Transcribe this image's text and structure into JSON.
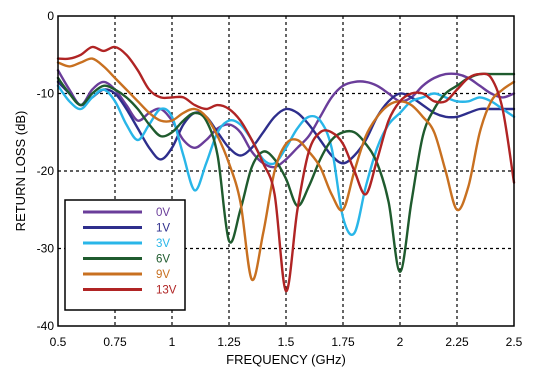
{
  "chart_data": {
    "type": "line",
    "title": "",
    "xlabel": "FREQUENCY (GHz)",
    "ylabel": "RETURN LOSS (dB)",
    "xlim": [
      0.5,
      2.5
    ],
    "ylim": [
      -40,
      0
    ],
    "x_ticks": [
      {
        "value": 0.5,
        "label": "0.5"
      },
      {
        "value": 0.75,
        "label": "0.75"
      },
      {
        "value": 1,
        "label": "1"
      },
      {
        "value": 1.25,
        "label": "1.25"
      },
      {
        "value": 1.5,
        "label": "1.5"
      },
      {
        "value": 1.75,
        "label": "1.75"
      },
      {
        "value": 2,
        "label": "2"
      },
      {
        "value": 2.25,
        "label": "2.25"
      },
      {
        "value": 2.5,
        "label": "2.5"
      }
    ],
    "y_ticks": [
      {
        "value": 0,
        "label": "0"
      },
      {
        "value": -10,
        "label": "-10"
      },
      {
        "value": -20,
        "label": "-20"
      },
      {
        "value": -30,
        "label": "-30"
      },
      {
        "value": -40,
        "label": "-40"
      }
    ],
    "grid": true,
    "legend_position": "bottom-left",
    "series": [
      {
        "name": "0V",
        "color": "#6a3d9a",
        "points": [
          [
            0.5,
            -7
          ],
          [
            0.55,
            -9.5
          ],
          [
            0.6,
            -11.5
          ],
          [
            0.65,
            -9.5
          ],
          [
            0.7,
            -8.5
          ],
          [
            0.75,
            -9.5
          ],
          [
            0.8,
            -11.5
          ],
          [
            0.85,
            -13.5
          ],
          [
            0.9,
            -12.5
          ],
          [
            0.95,
            -12
          ],
          [
            1.0,
            -13.5
          ],
          [
            1.05,
            -16
          ],
          [
            1.1,
            -17
          ],
          [
            1.15,
            -16
          ],
          [
            1.2,
            -14.5
          ],
          [
            1.25,
            -14
          ],
          [
            1.3,
            -15
          ],
          [
            1.35,
            -17.5
          ],
          [
            1.4,
            -19
          ],
          [
            1.45,
            -19.5
          ],
          [
            1.5,
            -18.5
          ],
          [
            1.55,
            -17
          ],
          [
            1.6,
            -15.5
          ],
          [
            1.65,
            -13
          ],
          [
            1.7,
            -10.5
          ],
          [
            1.75,
            -9
          ],
          [
            1.8,
            -8.5
          ],
          [
            1.85,
            -8.5
          ],
          [
            1.9,
            -9
          ],
          [
            1.95,
            -10
          ],
          [
            2.0,
            -11
          ],
          [
            2.05,
            -10.5
          ],
          [
            2.1,
            -9
          ],
          [
            2.15,
            -8
          ],
          [
            2.2,
            -7.5
          ],
          [
            2.25,
            -7.5
          ],
          [
            2.3,
            -8
          ],
          [
            2.35,
            -9
          ],
          [
            2.4,
            -10
          ],
          [
            2.45,
            -10.5
          ],
          [
            2.5,
            -10
          ]
        ]
      },
      {
        "name": "1V",
        "color": "#2e2e8c",
        "points": [
          [
            0.5,
            -8.5
          ],
          [
            0.55,
            -10
          ],
          [
            0.6,
            -11.5
          ],
          [
            0.65,
            -10.5
          ],
          [
            0.7,
            -9.5
          ],
          [
            0.75,
            -10
          ],
          [
            0.8,
            -12
          ],
          [
            0.85,
            -14.5
          ],
          [
            0.9,
            -17
          ],
          [
            0.95,
            -18.5
          ],
          [
            1.0,
            -17
          ],
          [
            1.05,
            -14
          ],
          [
            1.1,
            -12.5
          ],
          [
            1.15,
            -13
          ],
          [
            1.2,
            -15
          ],
          [
            1.25,
            -17
          ],
          [
            1.3,
            -18
          ],
          [
            1.35,
            -17
          ],
          [
            1.4,
            -15
          ],
          [
            1.45,
            -13
          ],
          [
            1.5,
            -12
          ],
          [
            1.55,
            -12.5
          ],
          [
            1.6,
            -14
          ],
          [
            1.65,
            -16
          ],
          [
            1.7,
            -18
          ],
          [
            1.75,
            -19
          ],
          [
            1.8,
            -18
          ],
          [
            1.85,
            -16
          ],
          [
            1.9,
            -13
          ],
          [
            1.95,
            -11
          ],
          [
            2.0,
            -10
          ],
          [
            2.05,
            -10.5
          ],
          [
            2.1,
            -11.5
          ],
          [
            2.15,
            -12.5
          ],
          [
            2.2,
            -13
          ],
          [
            2.25,
            -13
          ],
          [
            2.3,
            -12.5
          ],
          [
            2.35,
            -12
          ],
          [
            2.4,
            -12
          ],
          [
            2.45,
            -12
          ],
          [
            2.5,
            -12
          ]
        ]
      },
      {
        "name": "3V",
        "color": "#29b6e8",
        "points": [
          [
            0.5,
            -9
          ],
          [
            0.55,
            -11
          ],
          [
            0.6,
            -12
          ],
          [
            0.65,
            -10.5
          ],
          [
            0.7,
            -9.5
          ],
          [
            0.75,
            -11
          ],
          [
            0.8,
            -14
          ],
          [
            0.85,
            -16
          ],
          [
            0.9,
            -14
          ],
          [
            0.95,
            -12
          ],
          [
            1.0,
            -13
          ],
          [
            1.05,
            -18
          ],
          [
            1.1,
            -22.5
          ],
          [
            1.15,
            -19
          ],
          [
            1.2,
            -15
          ],
          [
            1.25,
            -13.5
          ],
          [
            1.3,
            -14
          ],
          [
            1.35,
            -16
          ],
          [
            1.4,
            -18.5
          ],
          [
            1.45,
            -19
          ],
          [
            1.5,
            -17
          ],
          [
            1.55,
            -14.5
          ],
          [
            1.6,
            -13
          ],
          [
            1.65,
            -13.5
          ],
          [
            1.7,
            -17
          ],
          [
            1.75,
            -26
          ],
          [
            1.8,
            -28
          ],
          [
            1.85,
            -22
          ],
          [
            1.9,
            -17
          ],
          [
            1.95,
            -14
          ],
          [
            2.0,
            -12.5
          ],
          [
            2.05,
            -11
          ],
          [
            2.1,
            -10.5
          ],
          [
            2.15,
            -10
          ],
          [
            2.2,
            -10.5
          ],
          [
            2.25,
            -11
          ],
          [
            2.3,
            -11
          ],
          [
            2.35,
            -10.5
          ],
          [
            2.4,
            -11
          ],
          [
            2.45,
            -12
          ],
          [
            2.5,
            -13
          ]
        ]
      },
      {
        "name": "6V",
        "color": "#1f5b2e",
        "points": [
          [
            0.5,
            -8
          ],
          [
            0.55,
            -10
          ],
          [
            0.6,
            -11.5
          ],
          [
            0.65,
            -10
          ],
          [
            0.7,
            -9
          ],
          [
            0.75,
            -9.5
          ],
          [
            0.8,
            -10.5
          ],
          [
            0.85,
            -12
          ],
          [
            0.9,
            -14
          ],
          [
            0.95,
            -15.5
          ],
          [
            1.0,
            -15
          ],
          [
            1.05,
            -13.5
          ],
          [
            1.1,
            -12.5
          ],
          [
            1.15,
            -13.5
          ],
          [
            1.2,
            -18
          ],
          [
            1.25,
            -29
          ],
          [
            1.3,
            -25
          ],
          [
            1.35,
            -19.5
          ],
          [
            1.4,
            -17.5
          ],
          [
            1.45,
            -18.5
          ],
          [
            1.5,
            -21
          ],
          [
            1.55,
            -24.5
          ],
          [
            1.6,
            -22
          ],
          [
            1.65,
            -18.5
          ],
          [
            1.7,
            -16
          ],
          [
            1.75,
            -15
          ],
          [
            1.8,
            -15
          ],
          [
            1.85,
            -16.5
          ],
          [
            1.9,
            -19
          ],
          [
            1.95,
            -24
          ],
          [
            2.0,
            -33
          ],
          [
            2.05,
            -24
          ],
          [
            2.1,
            -15.5
          ],
          [
            2.15,
            -12
          ],
          [
            2.2,
            -10
          ],
          [
            2.25,
            -9
          ],
          [
            2.3,
            -8
          ],
          [
            2.35,
            -7.5
          ],
          [
            2.4,
            -7.5
          ],
          [
            2.45,
            -7.5
          ],
          [
            2.5,
            -7.5
          ]
        ]
      },
      {
        "name": "9V",
        "color": "#c87020",
        "points": [
          [
            0.5,
            -6
          ],
          [
            0.55,
            -6.5
          ],
          [
            0.6,
            -6
          ],
          [
            0.65,
            -5.5
          ],
          [
            0.7,
            -6.5
          ],
          [
            0.75,
            -8
          ],
          [
            0.8,
            -9.5
          ],
          [
            0.85,
            -11
          ],
          [
            0.9,
            -12.5
          ],
          [
            0.95,
            -13.5
          ],
          [
            1.0,
            -13.5
          ],
          [
            1.05,
            -12.5
          ],
          [
            1.1,
            -12
          ],
          [
            1.15,
            -13
          ],
          [
            1.2,
            -15.5
          ],
          [
            1.25,
            -19
          ],
          [
            1.3,
            -24
          ],
          [
            1.35,
            -34
          ],
          [
            1.4,
            -28
          ],
          [
            1.45,
            -20
          ],
          [
            1.5,
            -16.5
          ],
          [
            1.55,
            -16
          ],
          [
            1.6,
            -17.5
          ],
          [
            1.65,
            -19.5
          ],
          [
            1.7,
            -23
          ],
          [
            1.75,
            -25
          ],
          [
            1.8,
            -20
          ],
          [
            1.85,
            -15.5
          ],
          [
            1.9,
            -13
          ],
          [
            1.95,
            -11.5
          ],
          [
            2.0,
            -11
          ],
          [
            2.05,
            -11.5
          ],
          [
            2.1,
            -13
          ],
          [
            2.15,
            -15
          ],
          [
            2.2,
            -20
          ],
          [
            2.25,
            -25
          ],
          [
            2.3,
            -22
          ],
          [
            2.35,
            -15
          ],
          [
            2.4,
            -11
          ],
          [
            2.45,
            -9.5
          ],
          [
            2.5,
            -8.5
          ]
        ]
      },
      {
        "name": "13V",
        "color": "#b02424",
        "points": [
          [
            0.5,
            -5.5
          ],
          [
            0.55,
            -5.5
          ],
          [
            0.6,
            -5
          ],
          [
            0.65,
            -4
          ],
          [
            0.7,
            -4.5
          ],
          [
            0.75,
            -4
          ],
          [
            0.8,
            -5
          ],
          [
            0.85,
            -7
          ],
          [
            0.9,
            -9.5
          ],
          [
            0.95,
            -10.5
          ],
          [
            1.0,
            -10.5
          ],
          [
            1.05,
            -10.5
          ],
          [
            1.1,
            -11.5
          ],
          [
            1.15,
            -12
          ],
          [
            1.2,
            -11.5
          ],
          [
            1.25,
            -12
          ],
          [
            1.3,
            -13.5
          ],
          [
            1.35,
            -16
          ],
          [
            1.4,
            -19
          ],
          [
            1.45,
            -23
          ],
          [
            1.5,
            -35.5
          ],
          [
            1.55,
            -25
          ],
          [
            1.6,
            -17.5
          ],
          [
            1.65,
            -15
          ],
          [
            1.7,
            -15
          ],
          [
            1.75,
            -16.5
          ],
          [
            1.8,
            -20
          ],
          [
            1.85,
            -23
          ],
          [
            1.9,
            -18.5
          ],
          [
            1.95,
            -13.5
          ],
          [
            2.0,
            -11
          ],
          [
            2.05,
            -10
          ],
          [
            2.1,
            -10
          ],
          [
            2.15,
            -11
          ],
          [
            2.2,
            -11
          ],
          [
            2.25,
            -9.5
          ],
          [
            2.3,
            -8
          ],
          [
            2.35,
            -7.5
          ],
          [
            2.4,
            -8
          ],
          [
            2.45,
            -12
          ],
          [
            2.5,
            -21.5
          ]
        ]
      }
    ]
  }
}
